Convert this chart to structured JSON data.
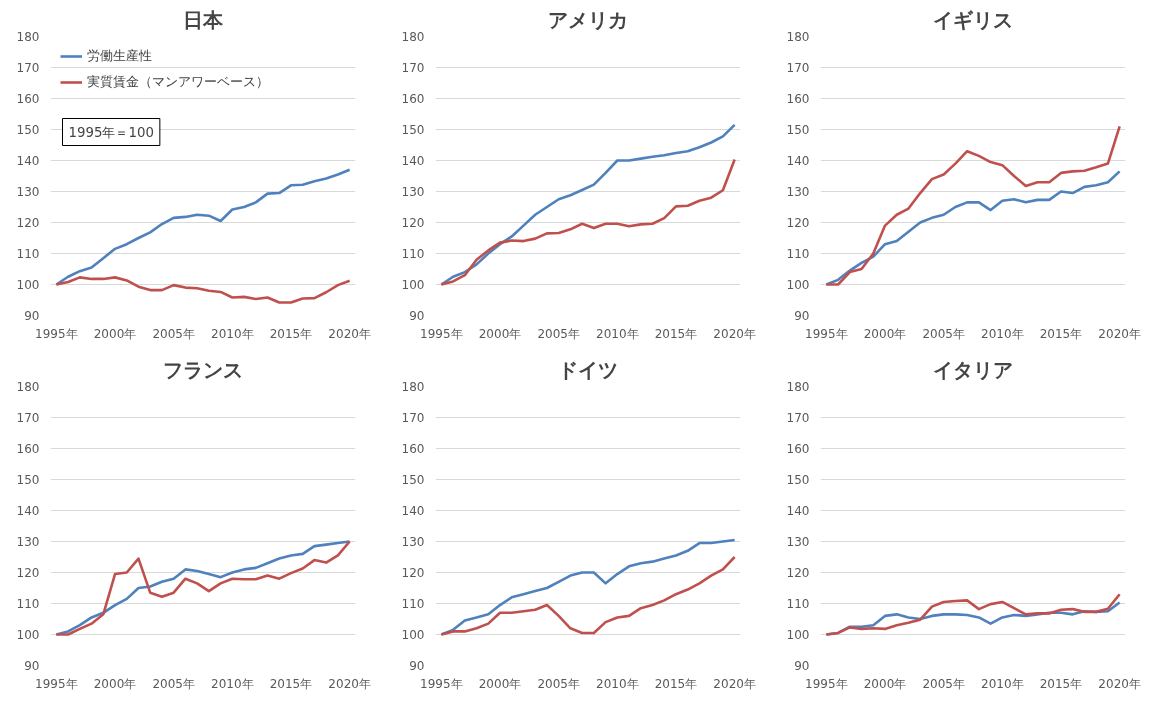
{
  "chart_data": [
    {
      "type": "line",
      "title": "日本",
      "x": [
        1995,
        1996,
        1997,
        1998,
        1999,
        2000,
        2001,
        2002,
        2003,
        2004,
        2005,
        2006,
        2007,
        2008,
        2009,
        2010,
        2011,
        2012,
        2013,
        2014,
        2015,
        2016,
        2017,
        2018,
        2019,
        2020
      ],
      "xlim": [
        1994.5,
        2020.5
      ],
      "xticks": [
        {
          "value": 1995,
          "label": "1995年"
        },
        {
          "value": 2000,
          "label": "2000年"
        },
        {
          "value": 2005,
          "label": "2005年"
        },
        {
          "value": 2010,
          "label": "2010年"
        },
        {
          "value": 2015,
          "label": "2015年"
        },
        {
          "value": 2020,
          "label": "2020年"
        }
      ],
      "ylim": [
        90,
        180
      ],
      "yticks": [
        90,
        100,
        110,
        120,
        130,
        140,
        150,
        160,
        170,
        180
      ],
      "grid": "y",
      "legend": "top left",
      "annotations": [
        "1995年＝100"
      ],
      "series": [
        {
          "name": "労働生産性",
          "color": "#4f81bd",
          "values": [
            100,
            102.5,
            104.3,
            105.5,
            108.5,
            111.5,
            113,
            115,
            116.8,
            119.5,
            121.5,
            121.8,
            122.5,
            122.2,
            120.5,
            124.2,
            125,
            126.5,
            129.3,
            129.5,
            132,
            132.2,
            133.3,
            134.2,
            135.5,
            137
          ]
        },
        {
          "name": "実質賃金（マンアワーベース）",
          "color": "#c0504d",
          "values": [
            100,
            100.8,
            102.3,
            101.8,
            101.8,
            102.3,
            101.3,
            99.3,
            98.2,
            98.2,
            99.8,
            99,
            98.8,
            98,
            97.6,
            95.8,
            96,
            95.3,
            95.8,
            94.2,
            94.2,
            95.5,
            95.6,
            97.5,
            99.8,
            101.2
          ]
        }
      ]
    },
    {
      "type": "line",
      "title": "アメリカ",
      "x": [
        1995,
        1996,
        1997,
        1998,
        1999,
        2000,
        2001,
        2002,
        2003,
        2004,
        2005,
        2006,
        2007,
        2008,
        2009,
        2010,
        2011,
        2012,
        2013,
        2014,
        2015,
        2016,
        2017,
        2018,
        2019,
        2020
      ],
      "xlim": [
        1994.5,
        2020.5
      ],
      "xticks": [
        {
          "value": 1995,
          "label": "1995年"
        },
        {
          "value": 2000,
          "label": "2000年"
        },
        {
          "value": 2005,
          "label": "2005年"
        },
        {
          "value": 2010,
          "label": "2010年"
        },
        {
          "value": 2015,
          "label": "2015年"
        },
        {
          "value": 2020,
          "label": "2020年"
        }
      ],
      "ylim": [
        90,
        180
      ],
      "yticks": [
        90,
        100,
        110,
        120,
        130,
        140,
        150,
        160,
        170,
        180
      ],
      "grid": "y",
      "series": [
        {
          "color": "#4f81bd",
          "values": [
            100,
            102.5,
            104,
            106.5,
            110,
            113,
            115.5,
            119,
            122.5,
            125,
            127.5,
            128.8,
            130.5,
            132.2,
            136,
            140,
            140,
            140.6,
            141.2,
            141.7,
            142.4,
            143,
            144.3,
            145.8,
            147.8,
            151.5
          ]
        },
        {
          "color": "#c0504d",
          "values": [
            100,
            101,
            103,
            108,
            111,
            113.5,
            114.2,
            114,
            114.8,
            116.5,
            116.6,
            117.8,
            119.6,
            118.2,
            119.6,
            119.6,
            118.8,
            119.4,
            119.6,
            121.4,
            125.2,
            125.4,
            127,
            128,
            130.4,
            140.3
          ]
        }
      ]
    },
    {
      "type": "line",
      "title": "イギリス",
      "x": [
        1995,
        1996,
        1997,
        1998,
        1999,
        2000,
        2001,
        2002,
        2003,
        2004,
        2005,
        2006,
        2007,
        2008,
        2009,
        2010,
        2011,
        2012,
        2013,
        2014,
        2015,
        2016,
        2017,
        2018,
        2019,
        2020
      ],
      "xlim": [
        1994.5,
        2020.5
      ],
      "xticks": [
        {
          "value": 1995,
          "label": "1995年"
        },
        {
          "value": 2000,
          "label": "2000年"
        },
        {
          "value": 2005,
          "label": "2005年"
        },
        {
          "value": 2010,
          "label": "2010年"
        },
        {
          "value": 2015,
          "label": "2015年"
        },
        {
          "value": 2020,
          "label": "2020年"
        }
      ],
      "ylim": [
        90,
        180
      ],
      "yticks": [
        90,
        100,
        110,
        120,
        130,
        140,
        150,
        160,
        170,
        180
      ],
      "grid": "y",
      "series": [
        {
          "color": "#4f81bd",
          "values": [
            100,
            101.5,
            104.5,
            107,
            109,
            113,
            114,
            117,
            120,
            121.5,
            122.5,
            125,
            126.5,
            126.5,
            124,
            127,
            127.5,
            126.5,
            127.3,
            127.3,
            130,
            129.5,
            131.5,
            132,
            133,
            136.5
          ]
        },
        {
          "color": "#c0504d",
          "values": [
            100,
            100,
            104,
            105,
            110,
            119,
            122.5,
            124.5,
            129.5,
            134,
            135.5,
            139,
            143,
            141.5,
            139.5,
            138.5,
            135,
            131.8,
            133,
            133,
            136,
            136.5,
            136.7,
            137.8,
            139,
            151
          ]
        }
      ]
    },
    {
      "type": "line",
      "title": "フランス",
      "x": [
        1995,
        1996,
        1997,
        1998,
        1999,
        2000,
        2001,
        2002,
        2003,
        2004,
        2005,
        2006,
        2007,
        2008,
        2009,
        2010,
        2011,
        2012,
        2013,
        2014,
        2015,
        2016,
        2017,
        2018,
        2019,
        2020
      ],
      "xlim": [
        1994.5,
        2020.5
      ],
      "xticks": [
        {
          "value": 1995,
          "label": "1995年"
        },
        {
          "value": 2000,
          "label": "2000年"
        },
        {
          "value": 2005,
          "label": "2005年"
        },
        {
          "value": 2010,
          "label": "2010年"
        },
        {
          "value": 2015,
          "label": "2015年"
        },
        {
          "value": 2020,
          "label": "2020年"
        }
      ],
      "ylim": [
        90,
        180
      ],
      "yticks": [
        90,
        100,
        110,
        120,
        130,
        140,
        150,
        160,
        170,
        180
      ],
      "grid": "y",
      "series": [
        {
          "color": "#4f81bd",
          "values": [
            100,
            101,
            103,
            105.5,
            107,
            109.5,
            111.5,
            115,
            115.5,
            117,
            118,
            121,
            120.5,
            119.5,
            118.5,
            120,
            121,
            121.5,
            123,
            124.5,
            125.5,
            126,
            128.5,
            129,
            129.5,
            130
          ]
        },
        {
          "color": "#c0504d",
          "values": [
            100,
            100,
            101.8,
            103.5,
            106.5,
            119.5,
            120,
            124.5,
            113.5,
            112.2,
            113.5,
            118,
            116.5,
            114,
            116.5,
            118,
            117.8,
            117.8,
            119,
            118,
            119.8,
            121.3,
            124,
            123.2,
            125.5,
            130
          ]
        }
      ]
    },
    {
      "type": "line",
      "title": "ドイツ",
      "x": [
        1995,
        1996,
        1997,
        1998,
        1999,
        2000,
        2001,
        2002,
        2003,
        2004,
        2005,
        2006,
        2007,
        2008,
        2009,
        2010,
        2011,
        2012,
        2013,
        2014,
        2015,
        2016,
        2017,
        2018,
        2019,
        2020
      ],
      "xlim": [
        1994.5,
        2020.5
      ],
      "xticks": [
        {
          "value": 1995,
          "label": "1995年"
        },
        {
          "value": 2000,
          "label": "2000年"
        },
        {
          "value": 2005,
          "label": "2005年"
        },
        {
          "value": 2010,
          "label": "2010年"
        },
        {
          "value": 2015,
          "label": "2015年"
        },
        {
          "value": 2020,
          "label": "2020年"
        }
      ],
      "ylim": [
        90,
        180
      ],
      "yticks": [
        90,
        100,
        110,
        120,
        130,
        140,
        150,
        160,
        170,
        180
      ],
      "grid": "y",
      "series": [
        {
          "color": "#4f81bd",
          "values": [
            100,
            101.5,
            104.5,
            105.5,
            106.5,
            109.5,
            112,
            113,
            114,
            115,
            117,
            119,
            120,
            120,
            116.5,
            119.5,
            122,
            123,
            123.5,
            124.5,
            125.5,
            127,
            129.5,
            129.5,
            130,
            130.5
          ]
        },
        {
          "color": "#c0504d",
          "values": [
            100,
            101,
            101,
            102,
            103.5,
            107,
            107,
            107.5,
            108,
            109.5,
            106,
            102,
            100.5,
            100.5,
            104,
            105.5,
            106,
            108.5,
            109.5,
            111,
            113,
            114.5,
            116.5,
            119,
            121,
            125
          ]
        }
      ]
    },
    {
      "type": "line",
      "title": "イタリア",
      "x": [
        1995,
        1996,
        1997,
        1998,
        1999,
        2000,
        2001,
        2002,
        2003,
        2004,
        2005,
        2006,
        2007,
        2008,
        2009,
        2010,
        2011,
        2012,
        2013,
        2014,
        2015,
        2016,
        2017,
        2018,
        2019,
        2020
      ],
      "xlim": [
        1994.5,
        2020.5
      ],
      "xticks": [
        {
          "value": 1995,
          "label": "1995年"
        },
        {
          "value": 2000,
          "label": "2000年"
        },
        {
          "value": 2005,
          "label": "2005年"
        },
        {
          "value": 2010,
          "label": "2010年"
        },
        {
          "value": 2015,
          "label": "2015年"
        },
        {
          "value": 2020,
          "label": "2020年"
        }
      ],
      "ylim": [
        90,
        180
      ],
      "yticks": [
        90,
        100,
        110,
        120,
        130,
        140,
        150,
        160,
        170,
        180
      ],
      "grid": "y",
      "series": [
        {
          "color": "#4f81bd",
          "values": [
            100,
            100.5,
            102.5,
            102.5,
            103,
            106,
            106.5,
            105.5,
            105,
            106,
            106.5,
            106.5,
            106.3,
            105.5,
            103.5,
            105.5,
            106.3,
            106,
            106.5,
            107,
            107,
            106.5,
            107.5,
            107.3,
            107.5,
            110.3
          ]
        },
        {
          "color": "#c0504d",
          "values": [
            100,
            100.5,
            102.3,
            101.8,
            102,
            101.8,
            103,
            103.8,
            104.8,
            109,
            110.5,
            110.8,
            111,
            108.2,
            109.8,
            110.5,
            108.5,
            106.5,
            106.8,
            106.8,
            108,
            108.2,
            107.3,
            107.3,
            108.3,
            113
          ]
        }
      ]
    }
  ]
}
